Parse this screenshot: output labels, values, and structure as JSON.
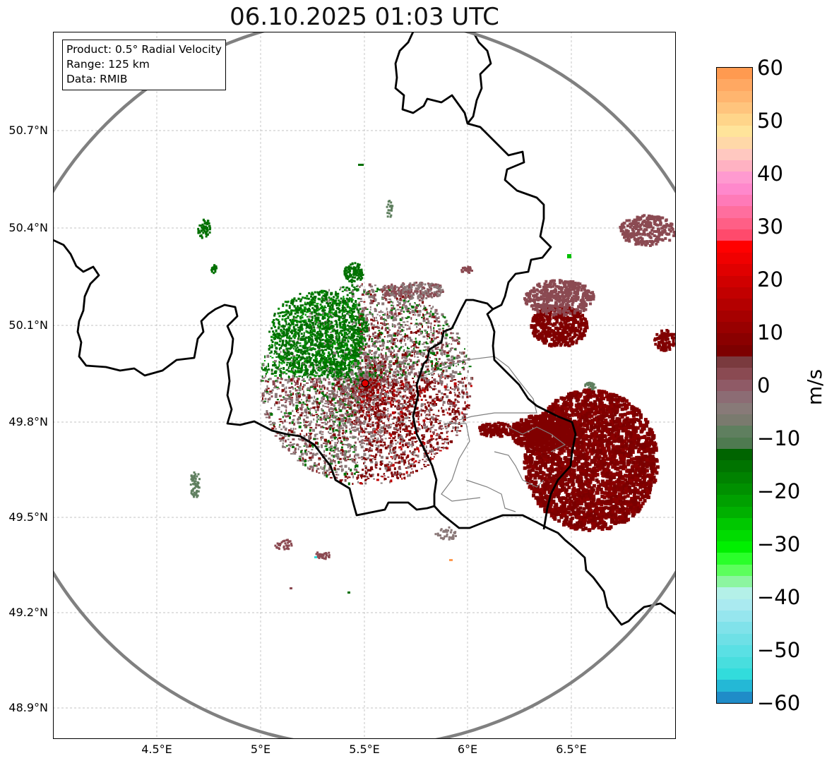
{
  "title": "06.10.2025 01:03 UTC",
  "info": {
    "product": "Product: 0.5° Radial Velocity",
    "range": "Range: 125 km",
    "data": "Data: RMIB"
  },
  "map": {
    "lat_ticks": [
      "50.7°N",
      "50.4°N",
      "50.1°N",
      "49.8°N",
      "49.5°N",
      "49.2°N",
      "48.9°N"
    ],
    "lon_ticks": [
      "4.5°E",
      "5°E",
      "5.5°E",
      "6°E",
      "6.5°E"
    ],
    "radar_site": {
      "lon": 5.5,
      "lat": 49.91
    },
    "range_ring_color": "#808080",
    "border_color": "#000000",
    "region_border_color": "#808080"
  },
  "colorbar": {
    "unit": "m/s",
    "ticks": [
      "60",
      "50",
      "40",
      "30",
      "20",
      "10",
      "0",
      "−10",
      "−20",
      "−30",
      "−40",
      "−50",
      "−60"
    ],
    "range": [
      -60,
      60
    ]
  },
  "echo_colors": {
    "receding_strong": "#800000",
    "receding_weak": "#8b4a52",
    "near_zero": "#8a7878",
    "approaching_weak": "#5f7f5f",
    "approaching_strong": "#007000"
  }
}
